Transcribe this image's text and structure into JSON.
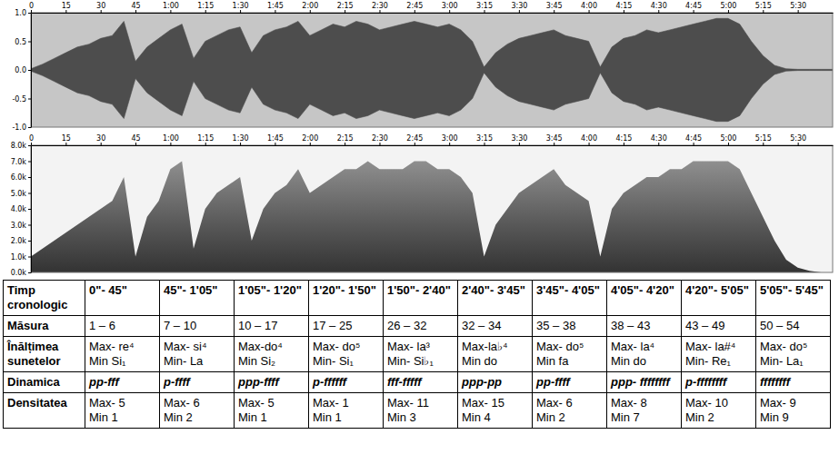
{
  "chart_data": [
    {
      "type": "waveform",
      "x": [
        0,
        5,
        10,
        15,
        20,
        25,
        30,
        35,
        40,
        45,
        50,
        55,
        60,
        65,
        70,
        75,
        80,
        85,
        90,
        95,
        100,
        105,
        110,
        115,
        120,
        125,
        130,
        135,
        140,
        145,
        150,
        155,
        160,
        165,
        170,
        175,
        180,
        185,
        190,
        195,
        200,
        205,
        210,
        215,
        220,
        225,
        230,
        235,
        240,
        245,
        250,
        255,
        260,
        265,
        270,
        275,
        280,
        285,
        290,
        295,
        300,
        305,
        310,
        315,
        320,
        325,
        330,
        335,
        340,
        345
      ],
      "values": [
        0.02,
        0.1,
        0.2,
        0.3,
        0.4,
        0.45,
        0.55,
        0.6,
        0.85,
        0.15,
        0.4,
        0.55,
        0.7,
        0.8,
        0.2,
        0.5,
        0.6,
        0.7,
        0.75,
        0.3,
        0.6,
        0.7,
        0.75,
        0.85,
        0.6,
        0.7,
        0.8,
        0.75,
        0.85,
        0.8,
        0.7,
        0.75,
        0.8,
        0.85,
        0.8,
        0.75,
        0.8,
        0.7,
        0.5,
        0.05,
        0.3,
        0.45,
        0.55,
        0.6,
        0.65,
        0.7,
        0.6,
        0.55,
        0.5,
        0.05,
        0.4,
        0.55,
        0.6,
        0.7,
        0.65,
        0.7,
        0.75,
        0.8,
        0.85,
        0.9,
        0.9,
        0.8,
        0.5,
        0.25,
        0.08,
        0.02,
        0.01,
        0.01,
        0.01,
        0.01
      ],
      "color": "#4d4d4d",
      "xlim": [
        0,
        345
      ],
      "xticks": [
        0,
        15,
        30,
        45,
        {
          "value": 60,
          "label": "1:00"
        },
        {
          "value": 75,
          "label": "1:15"
        },
        {
          "value": 90,
          "label": "1:30"
        },
        {
          "value": 105,
          "label": "1:45"
        },
        {
          "value": 120,
          "label": "2:00"
        },
        {
          "value": 135,
          "label": "2:15"
        },
        {
          "value": 150,
          "label": "2:30"
        },
        {
          "value": 165,
          "label": "2:45"
        },
        {
          "value": 180,
          "label": "3:00"
        },
        {
          "value": 195,
          "label": "3:15"
        },
        {
          "value": 210,
          "label": "3:30"
        },
        {
          "value": 225,
          "label": "3:45"
        },
        {
          "value": 240,
          "label": "4:00"
        },
        {
          "value": 255,
          "label": "4:15"
        },
        {
          "value": 270,
          "label": "4:30"
        },
        {
          "value": 285,
          "label": "4:45"
        },
        {
          "value": 300,
          "label": "5:00"
        },
        {
          "value": 315,
          "label": "5:15"
        },
        {
          "value": 330,
          "label": "5:30"
        }
      ],
      "ylim": [
        -1,
        1
      ],
      "yticks": [
        {
          "value": -1,
          "label": "-1.0"
        },
        {
          "value": -0.5,
          "label": "-0.5"
        },
        {
          "value": 0,
          "label": "0.0"
        },
        {
          "value": 0.5,
          "label": "0.5"
        },
        {
          "value": 1,
          "label": "1.0"
        }
      ]
    },
    {
      "type": "area",
      "x": [
        0,
        5,
        10,
        15,
        20,
        25,
        30,
        35,
        40,
        45,
        50,
        55,
        60,
        65,
        70,
        75,
        80,
        85,
        90,
        95,
        100,
        105,
        110,
        115,
        120,
        125,
        130,
        135,
        140,
        145,
        150,
        155,
        160,
        165,
        170,
        175,
        180,
        185,
        190,
        195,
        200,
        205,
        210,
        215,
        220,
        225,
        230,
        235,
        240,
        245,
        250,
        255,
        260,
        265,
        270,
        275,
        280,
        285,
        290,
        295,
        300,
        305,
        310,
        315,
        320,
        325,
        330,
        335,
        340,
        345
      ],
      "values": [
        1000,
        1500,
        2000,
        2500,
        3000,
        3500,
        4000,
        4500,
        6000,
        1000,
        3500,
        4500,
        6500,
        7000,
        1500,
        4000,
        5000,
        5500,
        6000,
        2000,
        4000,
        5000,
        5500,
        6500,
        5000,
        5500,
        6000,
        6500,
        6500,
        7000,
        6500,
        6500,
        6500,
        7000,
        7000,
        6500,
        6500,
        6000,
        5000,
        1000,
        3000,
        4000,
        5000,
        5500,
        6000,
        6500,
        5500,
        5000,
        4500,
        1000,
        4000,
        5000,
        5500,
        6000,
        6000,
        6500,
        6500,
        7000,
        7000,
        7000,
        7000,
        6500,
        5000,
        3500,
        2000,
        800,
        300,
        100,
        0,
        0
      ],
      "color": "#5a5a5a",
      "xlim": [
        0,
        345
      ],
      "xticks": [
        0,
        15,
        30,
        45,
        {
          "value": 60,
          "label": "1:00"
        },
        {
          "value": 75,
          "label": "1:15"
        },
        {
          "value": 90,
          "label": "1:30"
        },
        {
          "value": 105,
          "label": "1:45"
        },
        {
          "value": 120,
          "label": "2:00"
        },
        {
          "value": 135,
          "label": "2:15"
        },
        {
          "value": 150,
          "label": "2:30"
        },
        {
          "value": 165,
          "label": "2:45"
        },
        {
          "value": 180,
          "label": "3:00"
        },
        {
          "value": 195,
          "label": "3:15"
        },
        {
          "value": 210,
          "label": "3:30"
        },
        {
          "value": 225,
          "label": "3:45"
        },
        {
          "value": 240,
          "label": "4:00"
        },
        {
          "value": 255,
          "label": "4:15"
        },
        {
          "value": 270,
          "label": "4:30"
        },
        {
          "value": 285,
          "label": "4:45"
        },
        {
          "value": 300,
          "label": "5:00"
        },
        {
          "value": 315,
          "label": "5:15"
        },
        {
          "value": 330,
          "label": "5:30"
        }
      ],
      "ylim": [
        0,
        8000
      ],
      "yticks": [
        {
          "value": 0,
          "label": "0.0k"
        },
        {
          "value": 1000,
          "label": "1.0k"
        },
        {
          "value": 2000,
          "label": "2.0k"
        },
        {
          "value": 3000,
          "label": "3.0k"
        },
        {
          "value": 4000,
          "label": "4.0k"
        },
        {
          "value": 5000,
          "label": "5.0k"
        },
        {
          "value": 6000,
          "label": "6.0k"
        },
        {
          "value": 7000,
          "label": "7.0k"
        },
        {
          "value": 8000,
          "label": "8.0k"
        }
      ]
    }
  ],
  "table": {
    "rows": [
      [
        "Timp cronologic",
        "0\"- 45\"",
        "45\"- 1'05\"",
        "1'05\"- 1'20\"",
        "1'20\"- 1'50\"",
        "1'50\"- 2'40\"",
        "2'40\"- 3'45\"",
        "3'45\"- 4'05\"",
        "4'05\"- 4'20\"",
        "4'20\"- 5'05\"",
        "5'05\"- 5'45\""
      ],
      [
        "Măsura",
        "1 – 6",
        "7 – 10",
        "10 – 17",
        "17 – 25",
        "26 – 32",
        "32 – 34",
        "35 – 38",
        "38 – 43",
        "43 – 49",
        "50 – 54"
      ],
      [
        "Înălțimea sunetelor",
        [
          "Max- re⁴",
          "Min Si₁"
        ],
        [
          "Max- si⁴",
          "Min- La"
        ],
        [
          "Max-do⁴",
          "Min Si₂"
        ],
        [
          "Max- do⁵",
          "Min- Si₁"
        ],
        [
          "Max- la³",
          "Min- Si♭₁"
        ],
        [
          "Max-la♭⁴",
          "Min do"
        ],
        [
          "Max- do⁵",
          "Min fa"
        ],
        [
          "Max- la⁴",
          "Min do"
        ],
        [
          "Max- la#⁴",
          "Min- Re₁"
        ],
        [
          "Max- do⁵",
          "Min- La₁"
        ]
      ],
      [
        "Dinamica",
        "pp-fff",
        "p-ffff",
        "ppp-ffff",
        "p-ffffff",
        "fff-fffff",
        "ppp-pp",
        "pp-ffff",
        "ppp- ffffffff",
        "p-ffffffff",
        "ffffffff"
      ],
      [
        "Densitatea",
        [
          "Max- 5",
          "Min 1"
        ],
        [
          "Max- 6",
          "Min 2"
        ],
        [
          "Max- 5",
          "Min 1"
        ],
        [
          "Max- 1",
          "Min 1"
        ],
        [
          "Max- 11",
          "Min 3"
        ],
        [
          "Max- 15",
          "Min 4"
        ],
        [
          "Max- 6",
          "Min 2"
        ],
        [
          "Max- 8",
          "Min 7"
        ],
        [
          "Max- 10",
          "Min 2"
        ],
        [
          "Max- 9",
          "Min 9"
        ]
      ]
    ]
  }
}
